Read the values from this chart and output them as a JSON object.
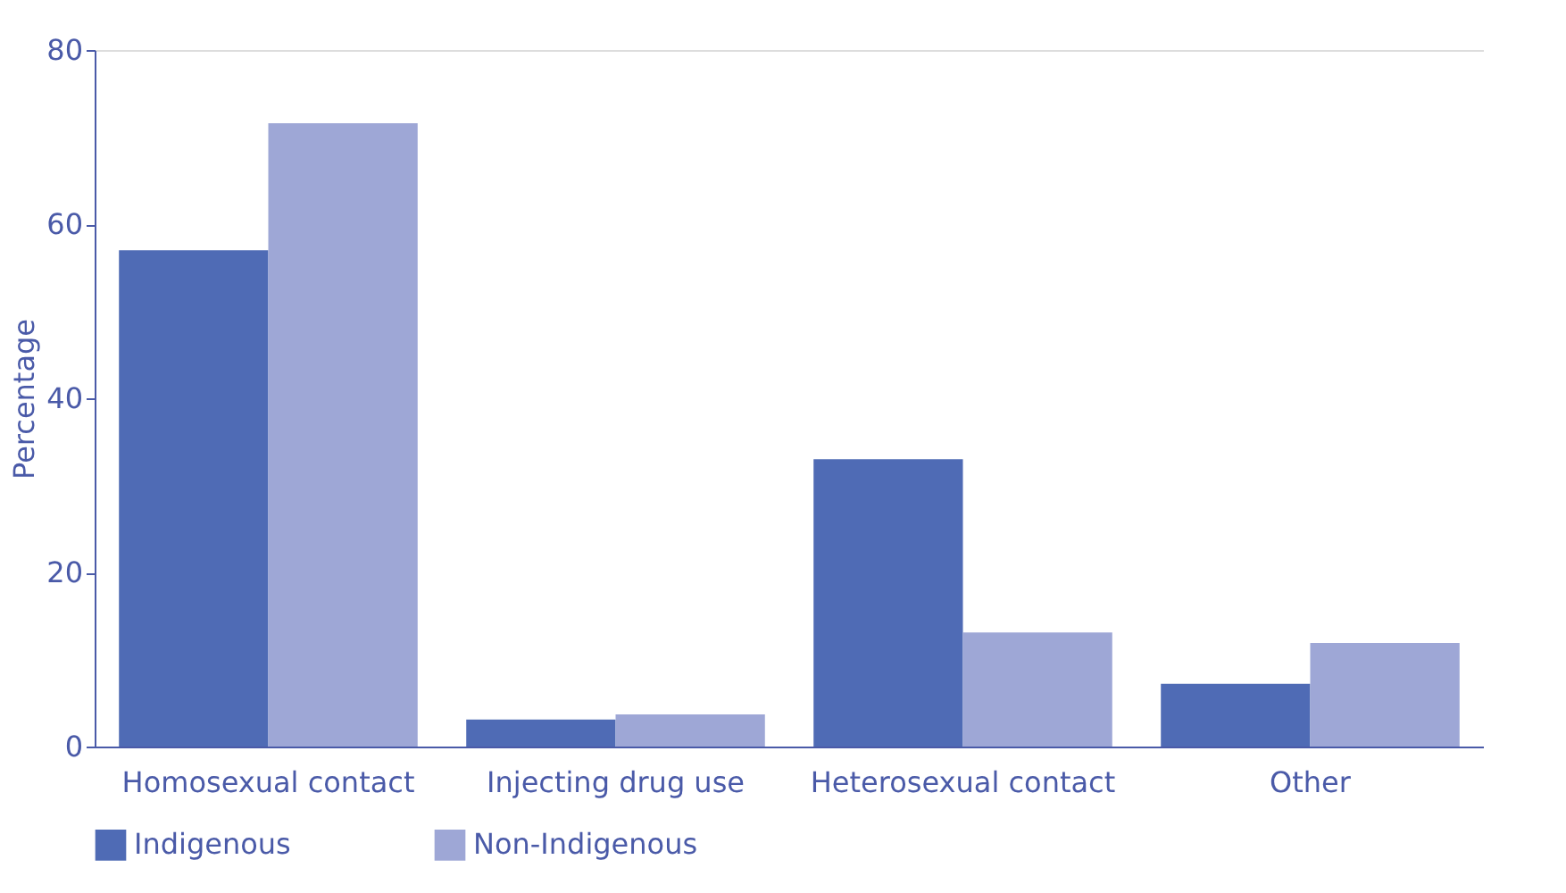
{
  "chart_data": {
    "type": "bar",
    "ylabel": "Percentage",
    "categories": [
      "Homosexual contact",
      "Injecting drug use",
      "Heterosexual contact",
      "Other"
    ],
    "series": [
      {
        "name": "Indigenous",
        "color": "#4f6bb5",
        "values": [
          57.0,
          3.1,
          33.0,
          7.2
        ]
      },
      {
        "name": "Non-Indigenous",
        "color": "#9ea7d6",
        "values": [
          71.6,
          3.7,
          13.1,
          11.9
        ]
      }
    ],
    "ylim": [
      0,
      80
    ],
    "yticks": [
      0,
      20,
      40,
      60,
      80
    ],
    "grid": false,
    "legend": "bottom"
  }
}
